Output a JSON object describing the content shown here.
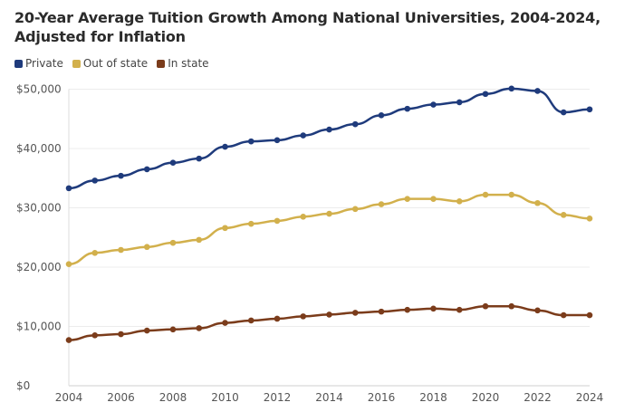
{
  "chart_data": {
    "type": "line",
    "title": "20-Year Average Tuition Growth Among National Universities, 2004-2024, Adjusted for Inflation",
    "xlabel": "",
    "ylabel": "",
    "x": [
      2004,
      2005,
      2006,
      2007,
      2008,
      2009,
      2010,
      2011,
      2012,
      2013,
      2014,
      2015,
      2016,
      2017,
      2018,
      2019,
      2020,
      2021,
      2022,
      2023,
      2024
    ],
    "xlim": [
      2004,
      2024
    ],
    "ylim": [
      0,
      50000
    ],
    "x_ticks": [
      "2004",
      "2006",
      "2008",
      "2010",
      "2012",
      "2014",
      "2016",
      "2018",
      "2020",
      "2022",
      "2024"
    ],
    "y_ticks": [
      {
        "value": 0,
        "label": "$0"
      },
      {
        "value": 10000,
        "label": "$10,000"
      },
      {
        "value": 20000,
        "label": "$20,000"
      },
      {
        "value": 30000,
        "label": "$30,000"
      },
      {
        "value": 40000,
        "label": "$40,000"
      },
      {
        "value": 50000,
        "label": "$50,000"
      }
    ],
    "grid": "horizontal",
    "legend_position": "top-left",
    "series": [
      {
        "name": "Private",
        "color": "#1f3b7c",
        "values": [
          33300,
          34600,
          35400,
          36500,
          37600,
          38300,
          40300,
          41200,
          41400,
          42200,
          43200,
          44100,
          45600,
          46700,
          47400,
          47800,
          49200,
          50100,
          49700,
          46100,
          46600
        ]
      },
      {
        "name": "Out of state",
        "color": "#d2b04c",
        "values": [
          20500,
          22400,
          22900,
          23400,
          24100,
          24600,
          26600,
          27300,
          27800,
          28500,
          29000,
          29800,
          30600,
          31500,
          31500,
          31100,
          32200,
          32200,
          30800,
          28800,
          28200
        ]
      },
      {
        "name": "In state",
        "color": "#7b3c1b",
        "values": [
          7700,
          8500,
          8700,
          9300,
          9500,
          9700,
          10600,
          11000,
          11300,
          11700,
          12000,
          12300,
          12500,
          12800,
          13000,
          12800,
          13400,
          13400,
          12700,
          11900,
          11900
        ]
      }
    ]
  }
}
